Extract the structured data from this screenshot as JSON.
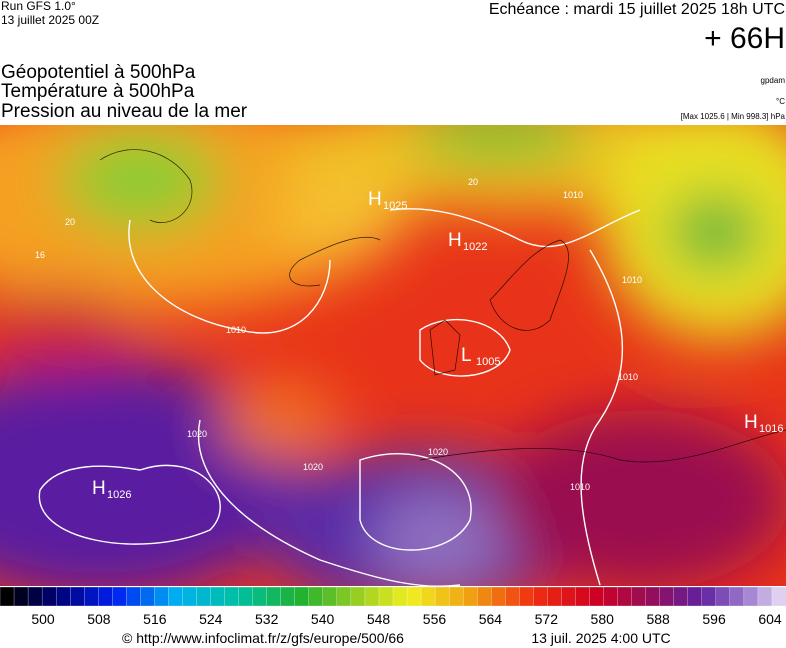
{
  "header": {
    "run": "Run GFS 1.0°",
    "run_date": "13 juillet 2025 00Z",
    "valid": "Echéance : mardi 15 juillet 2025 18h UTC",
    "lead": "+ 66H"
  },
  "titles": [
    "Géopotentiel à 500hPa",
    "Température à 500hPa",
    "Pression au niveau de la mer"
  ],
  "units": {
    "geopotential": "gpdam",
    "temperature": "°C",
    "pressure": "[Max 1025.6 | Min 998.3] hPa"
  },
  "pressure_centers": [
    {
      "letter": "H",
      "value": 1025
    },
    {
      "letter": "H",
      "value": 1022
    },
    {
      "letter": "L",
      "value": 1005
    },
    {
      "letter": "H",
      "value": 1016
    },
    {
      "letter": "H",
      "value": 1026
    }
  ],
  "contour_labels": [
    1010,
    1010,
    1010,
    1010,
    1020,
    1020,
    1020,
    1010,
    20,
    20,
    16
  ],
  "colorbar": {
    "labels": [
      500,
      508,
      516,
      524,
      532,
      540,
      548,
      556,
      564,
      572,
      580,
      588,
      596,
      604
    ]
  },
  "footer": {
    "url": "© http://www.infoclimat.fr/z/gfs/europe/500/66",
    "date": "13 juil. 2025  4:00 UTC"
  }
}
